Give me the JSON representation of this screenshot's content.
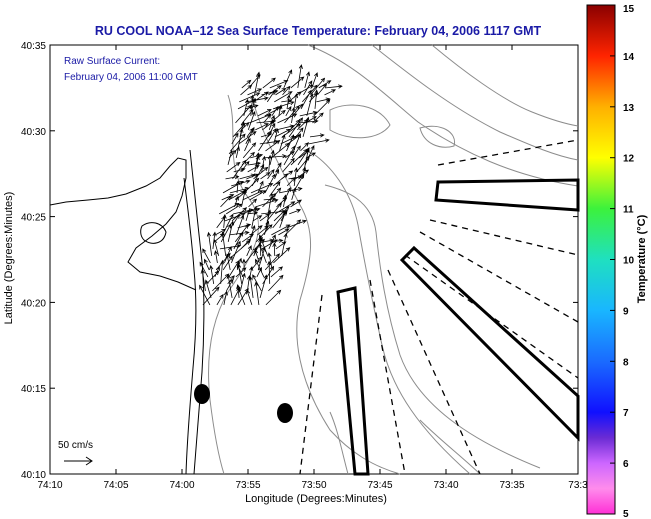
{
  "chart_data": {
    "type": "map",
    "title": "RU COOL  NOAA–12  Sea Surface Temperature:  February 04, 2006 1117 GMT",
    "annotation_lines": [
      "Raw Surface Current:",
      "February 04, 2006 11:00 GMT"
    ],
    "xlabel": "Longitude (Degrees:Minutes)",
    "ylabel": "Latitude (Degrees:Minutes)",
    "x_ticks": [
      "74:10",
      "74:05",
      "74:00",
      "73:55",
      "73:50",
      "73:45",
      "73:40",
      "73:35",
      "73:3"
    ],
    "y_ticks": [
      "40:10",
      "40:15",
      "40:20",
      "40:25",
      "40:30",
      "40:35"
    ],
    "x_range_minutes_west": [
      70,
      30
    ],
    "y_range_minutes_north": [
      10,
      35
    ],
    "scale_label": "50 cm/s",
    "colorbar": {
      "label": "Temperature (°C)",
      "ticks": [
        5,
        6,
        7,
        8,
        9,
        10,
        11,
        12,
        13,
        14,
        15
      ],
      "range": [
        5,
        15
      ]
    },
    "markers": [
      {
        "lon_minutes_west": 58.6,
        "lat_minutes_north": 14.6
      },
      {
        "lon_minutes_west": 52.7,
        "lat_minutes_north": 13.5
      }
    ],
    "current_vector_region": {
      "lon_minutes_west": [
        49,
        58.5
      ],
      "lat_minutes_north": [
        19.5,
        32.5
      ],
      "mean_direction": "northeast"
    }
  }
}
